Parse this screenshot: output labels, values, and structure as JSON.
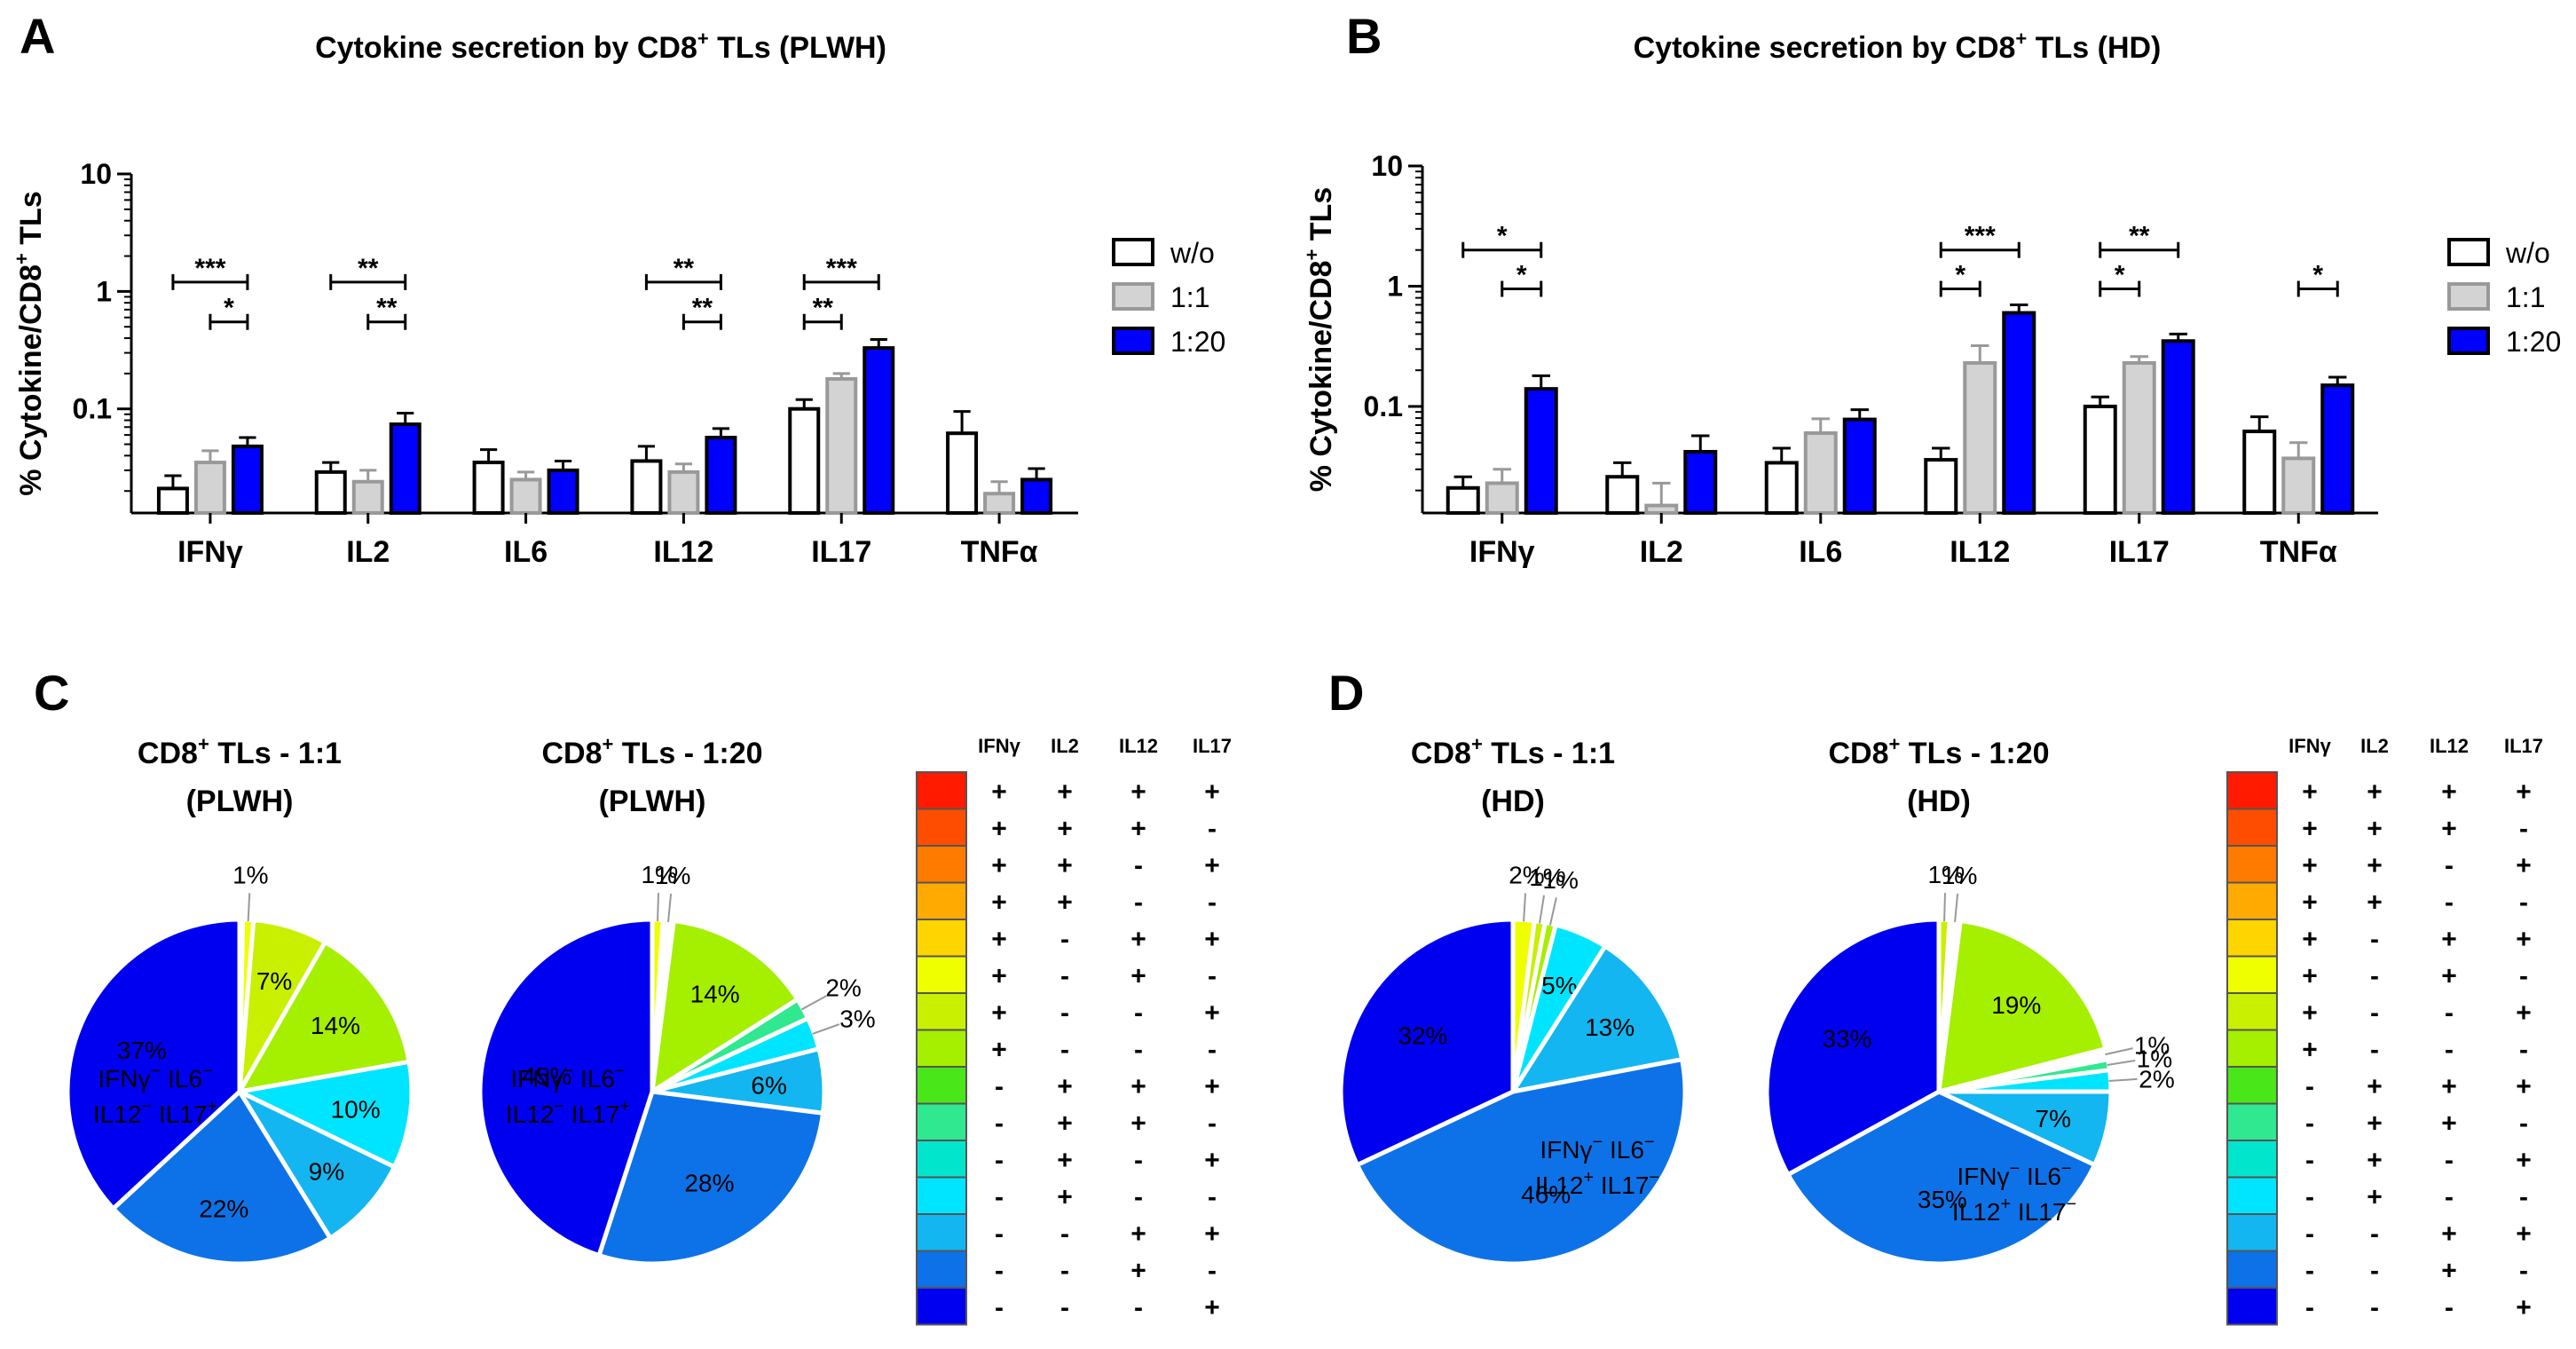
{
  "chart_data": [
    {
      "type": "bar",
      "panel": "A",
      "title_prefix": "Cytokine secretion by CD8",
      "title_sup": "+",
      "title_suffix": " TLs (PLWH)",
      "ylabel_prefix": "% Cytokine/CD8",
      "ylabel_sup": "+",
      "ylabel_suffix": " TLs",
      "yscale": "log",
      "ylim": [
        0.013,
        10
      ],
      "yticks": [
        {
          "v": 0.1,
          "label": "0.1"
        },
        {
          "v": 1,
          "label": "1"
        },
        {
          "v": 10,
          "label": "10"
        }
      ],
      "categories": [
        "IFNγ",
        "IL2",
        "IL6",
        "IL12",
        "IL17",
        "TNFα"
      ],
      "series": [
        {
          "name": "w/o",
          "fill": "#ffffff",
          "stroke": "#000000",
          "values": [
            0.021,
            0.029,
            0.035,
            0.036,
            0.1,
            0.062
          ],
          "errors": [
            0.027,
            0.035,
            0.045,
            0.048,
            0.12,
            0.095
          ]
        },
        {
          "name": "1:1",
          "fill": "#d3d3d3",
          "stroke": "#999999",
          "values": [
            0.035,
            0.024,
            0.025,
            0.029,
            0.18,
            0.019
          ],
          "errors": [
            0.044,
            0.03,
            0.029,
            0.034,
            0.2,
            0.024
          ]
        },
        {
          "name": "1:20",
          "fill": "#0000ff",
          "stroke": "#000000",
          "values": [
            0.048,
            0.074,
            0.03,
            0.057,
            0.33,
            0.025
          ],
          "errors": [
            0.057,
            0.092,
            0.036,
            0.068,
            0.39,
            0.031
          ]
        }
      ],
      "significance": [
        {
          "cat": 0,
          "from": 0,
          "to": 2,
          "level": 1.2,
          "label": "***"
        },
        {
          "cat": 0,
          "from": 1,
          "to": 2,
          "level": 0.55,
          "label": "*"
        },
        {
          "cat": 1,
          "from": 0,
          "to": 2,
          "level": 1.2,
          "label": "**"
        },
        {
          "cat": 1,
          "from": 1,
          "to": 2,
          "level": 0.55,
          "label": "**"
        },
        {
          "cat": 3,
          "from": 0,
          "to": 2,
          "level": 1.2,
          "label": "**"
        },
        {
          "cat": 3,
          "from": 1,
          "to": 2,
          "level": 0.55,
          "label": "**"
        },
        {
          "cat": 4,
          "from": 0,
          "to": 2,
          "level": 1.2,
          "label": "***"
        },
        {
          "cat": 4,
          "from": 0,
          "to": 1,
          "level": 0.55,
          "label": "**"
        }
      ]
    },
    {
      "type": "bar",
      "panel": "B",
      "title_prefix": "Cytokine secretion by CD8",
      "title_sup": "+",
      "title_suffix": " TLs (HD)",
      "ylabel_prefix": "% Cytokine/CD8",
      "ylabel_sup": "+",
      "ylabel_suffix": " TLs",
      "yscale": "log",
      "ylim": [
        0.013,
        10
      ],
      "yticks": [
        {
          "v": 0.1,
          "label": "0.1"
        },
        {
          "v": 1,
          "label": "1"
        },
        {
          "v": 10,
          "label": "10"
        }
      ],
      "categories": [
        "IFNγ",
        "IL2",
        "IL6",
        "IL12",
        "IL17",
        "TNFα"
      ],
      "series": [
        {
          "name": "w/o",
          "fill": "#ffffff",
          "stroke": "#000000",
          "values": [
            0.021,
            0.026,
            0.034,
            0.036,
            0.1,
            0.062
          ],
          "errors": [
            0.026,
            0.034,
            0.045,
            0.045,
            0.12,
            0.082
          ]
        },
        {
          "name": "1:1",
          "fill": "#d3d3d3",
          "stroke": "#999999",
          "values": [
            0.023,
            0.015,
            0.06,
            0.23,
            0.23,
            0.037
          ],
          "errors": [
            0.03,
            0.023,
            0.079,
            0.32,
            0.26,
            0.05
          ]
        },
        {
          "name": "1:20",
          "fill": "#0000ff",
          "stroke": "#000000",
          "values": [
            0.14,
            0.042,
            0.078,
            0.6,
            0.35,
            0.15
          ],
          "errors": [
            0.18,
            0.057,
            0.094,
            0.7,
            0.4,
            0.175
          ]
        }
      ],
      "significance": [
        {
          "cat": 0,
          "from": 0,
          "to": 2,
          "level": 2.0,
          "label": "*"
        },
        {
          "cat": 0,
          "from": 1,
          "to": 2,
          "level": 0.95,
          "label": "*"
        },
        {
          "cat": 3,
          "from": 0,
          "to": 2,
          "level": 2.0,
          "label": "***"
        },
        {
          "cat": 3,
          "from": 0,
          "to": 1,
          "level": 0.95,
          "label": "*"
        },
        {
          "cat": 4,
          "from": 0,
          "to": 2,
          "level": 2.0,
          "label": "**"
        },
        {
          "cat": 4,
          "from": 0,
          "to": 1,
          "level": 0.95,
          "label": "*"
        },
        {
          "cat": 5,
          "from": 1,
          "to": 2,
          "level": 0.95,
          "label": "*"
        }
      ]
    },
    {
      "type": "pie",
      "panel": "C-left",
      "title_line1_prefix": "CD8",
      "title_line1_sup": "+",
      "title_line1_suffix": " TLs - 1:1",
      "title_line2": "(PLWH)",
      "slices": [
        {
          "color": "#ffffff",
          "value": 0.3,
          "label": ""
        },
        {
          "color": "#f0ff00",
          "value": 1,
          "label": "1%"
        },
        {
          "color": "#c8f000",
          "value": 7,
          "label": "7%"
        },
        {
          "color": "#a5ef00",
          "value": 14,
          "label": "14%"
        },
        {
          "color": "#00e5ff",
          "value": 10,
          "label": "10%"
        },
        {
          "color": "#13b6f0",
          "value": 9,
          "label": "9%"
        },
        {
          "color": "#0d72e8",
          "value": 22,
          "label": "22%"
        },
        {
          "color": "#0000f0",
          "value": 37,
          "label": "37%"
        }
      ]
    },
    {
      "type": "pie",
      "panel": "C-right",
      "title_line1_prefix": "CD8",
      "title_line1_sup": "+",
      "title_line1_suffix": " TLs - 1:20",
      "title_line2": "(PLWH)",
      "slices": [
        {
          "color": "#f0ff00",
          "value": 1,
          "label": "1%"
        },
        {
          "color": "#ffffff",
          "value": 1,
          "label": "1%"
        },
        {
          "color": "#a5ef00",
          "value": 14,
          "label": "14%"
        },
        {
          "color": "#30e890",
          "value": 2,
          "label": "2%"
        },
        {
          "color": "#00e5ff",
          "value": 3,
          "label": "3%"
        },
        {
          "color": "#13b6f0",
          "value": 6,
          "label": "6%"
        },
        {
          "color": "#0d72e8",
          "value": 28,
          "label": "28%"
        },
        {
          "color": "#0000f0",
          "value": 45,
          "label": "45%"
        }
      ]
    },
    {
      "type": "pie",
      "panel": "D-left",
      "title_line1_prefix": "CD8",
      "title_line1_sup": "+",
      "title_line1_suffix": " TLs - 1:1",
      "title_line2": "(HD)",
      "slices": [
        {
          "color": "#f0ff00",
          "value": 2,
          "label": "2%"
        },
        {
          "color": "#c8f000",
          "value": 1,
          "label": "1%"
        },
        {
          "color": "#a5ef00",
          "value": 1,
          "label": "1%"
        },
        {
          "color": "#00e5ff",
          "value": 5,
          "label": "5%"
        },
        {
          "color": "#13b6f0",
          "value": 13,
          "label": "13%"
        },
        {
          "color": "#0d72e8",
          "value": 46,
          "label": "46%"
        },
        {
          "color": "#0000f0",
          "value": 32,
          "label": "32%"
        }
      ]
    },
    {
      "type": "pie",
      "panel": "D-right",
      "title_line1_prefix": "CD8",
      "title_line1_sup": "+",
      "title_line1_suffix": " TLs - 1:20",
      "title_line2": "(HD)",
      "slices": [
        {
          "color": "#c8f000",
          "value": 1,
          "label": "1%"
        },
        {
          "color": "#ffffff",
          "value": 1,
          "label": "1%"
        },
        {
          "color": "#a5ef00",
          "value": 19,
          "label": "19%"
        },
        {
          "color": "#ffffff",
          "value": 1,
          "label": "1%"
        },
        {
          "color": "#30e890",
          "value": 1,
          "label": "1%"
        },
        {
          "color": "#00e5ff",
          "value": 2,
          "label": "2%"
        },
        {
          "color": "#13b6f0",
          "value": 7,
          "label": "7%"
        },
        {
          "color": "#0d72e8",
          "value": 35,
          "label": "35%"
        },
        {
          "color": "#0000f0",
          "value": 33,
          "label": "33%"
        }
      ]
    }
  ],
  "panel_letters": {
    "a": "A",
    "b": "B",
    "c": "C",
    "d": "D"
  },
  "pie_annotations": [
    {
      "panel": "C-left",
      "pre1": "IFNγ",
      "sup1": "−",
      "mid1": " IL6",
      "sup2": "−",
      "pre2": "IL12",
      "sup3": "−",
      "mid2": " IL17",
      "sup4": "+"
    },
    {
      "panel": "C-right",
      "pre1": "IFNγ",
      "sup1": "−",
      "mid1": " IL6",
      "sup2": "−",
      "pre2": "IL12",
      "sup3": "−",
      "mid2": " IL17",
      "sup4": "+"
    },
    {
      "panel": "D-left",
      "pre1": "IFNγ",
      "sup1": "−",
      "mid1": " IL6",
      "sup2": "−",
      "pre2": "IL12",
      "sup3": "+",
      "mid2": " IL17",
      "sup4": "−"
    },
    {
      "panel": "D-right",
      "pre1": "IFNγ",
      "sup1": "−",
      "mid1": " IL6",
      "sup2": "−",
      "pre2": "IL12",
      "sup3": "+",
      "mid2": " IL17",
      "sup4": "−"
    }
  ],
  "combo_legend": {
    "headers": [
      "IFNγ",
      "IL2",
      "IL12",
      "IL17"
    ],
    "colors": [
      "#ff1a00",
      "#ff4d00",
      "#ff7b00",
      "#ffaa00",
      "#ffd500",
      "#f0ff00",
      "#c8f000",
      "#a5ef00",
      "#49e619",
      "#30e890",
      "#00e5cc",
      "#00e5ff",
      "#13b6f0",
      "#0d72e8",
      "#0000f0"
    ],
    "rows": [
      [
        "+",
        "+",
        "+",
        "+"
      ],
      [
        "+",
        "+",
        "+",
        "-"
      ],
      [
        "+",
        "+",
        "-",
        "+"
      ],
      [
        "+",
        "+",
        "-",
        "-"
      ],
      [
        "+",
        "-",
        "+",
        "+"
      ],
      [
        "+",
        "-",
        "+",
        "-"
      ],
      [
        "+",
        "-",
        "-",
        "+"
      ],
      [
        "+",
        "-",
        "-",
        "-"
      ],
      [
        "-",
        "+",
        "+",
        "+"
      ],
      [
        "-",
        "+",
        "+",
        "-"
      ],
      [
        "-",
        "+",
        "-",
        "+"
      ],
      [
        "-",
        "+",
        "-",
        "-"
      ],
      [
        "-",
        "-",
        "+",
        "+"
      ],
      [
        "-",
        "-",
        "+",
        "-"
      ],
      [
        "-",
        "-",
        "-",
        "+"
      ]
    ]
  }
}
